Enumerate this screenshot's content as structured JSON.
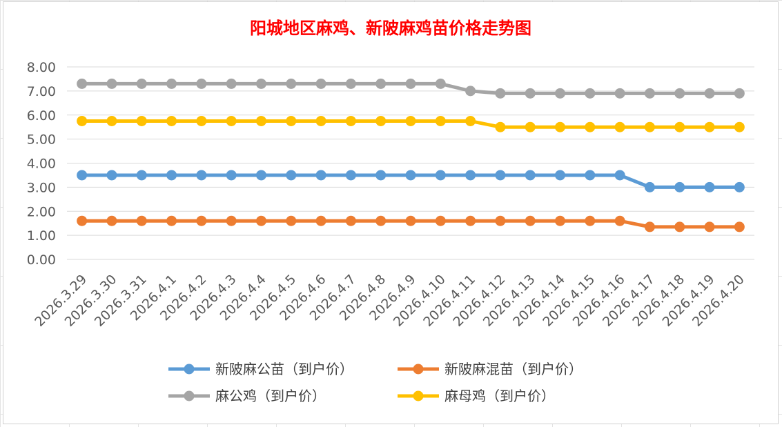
{
  "chart_data": {
    "type": "line",
    "title": "阳城地区麻鸡、新陂麻鸡苗价格走势图",
    "xlabel": "",
    "ylabel": "",
    "ylim": [
      0,
      8
    ],
    "y_ticks": [
      "0.00",
      "1.00",
      "2.00",
      "3.00",
      "4.00",
      "5.00",
      "6.00",
      "7.00",
      "8.00"
    ],
    "grid": true,
    "legend_position": "bottom",
    "x": [
      "2026.3.29",
      "2026.3.30",
      "2026.3.31",
      "2026.4.1",
      "2026.4.2",
      "2026.4.3",
      "2026.4.4",
      "2026.4.5",
      "2026.4.6",
      "2026.4.7",
      "2026.4.8",
      "2026.4.9",
      "2026.4.10",
      "2026.4.11",
      "2026.4.12",
      "2026.4.13",
      "2026.4.14",
      "2026.4.15",
      "2026.4.16",
      "2026.4.17",
      "2026.4.18",
      "2026.4.19",
      "2026.4.20"
    ],
    "series": [
      {
        "name": "新陂麻公苗（到户价）",
        "color": "#5b9bd5",
        "values": [
          3.5,
          3.5,
          3.5,
          3.5,
          3.5,
          3.5,
          3.5,
          3.5,
          3.5,
          3.5,
          3.5,
          3.5,
          3.5,
          3.5,
          3.5,
          3.5,
          3.5,
          3.5,
          3.5,
          3.0,
          3.0,
          3.0,
          3.0
        ]
      },
      {
        "name": "新陂麻混苗（到户价）",
        "color": "#ed7d31",
        "values": [
          1.6,
          1.6,
          1.6,
          1.6,
          1.6,
          1.6,
          1.6,
          1.6,
          1.6,
          1.6,
          1.6,
          1.6,
          1.6,
          1.6,
          1.6,
          1.6,
          1.6,
          1.6,
          1.6,
          1.35,
          1.35,
          1.35,
          1.35
        ]
      },
      {
        "name": "麻公鸡（到户价）",
        "color": "#a5a5a5",
        "values": [
          7.3,
          7.3,
          7.3,
          7.3,
          7.3,
          7.3,
          7.3,
          7.3,
          7.3,
          7.3,
          7.3,
          7.3,
          7.3,
          7.0,
          6.9,
          6.9,
          6.9,
          6.9,
          6.9,
          6.9,
          6.9,
          6.9,
          6.9
        ]
      },
      {
        "name": "麻母鸡（到户价）",
        "color": "#ffc000",
        "values": [
          5.75,
          5.75,
          5.75,
          5.75,
          5.75,
          5.75,
          5.75,
          5.75,
          5.75,
          5.75,
          5.75,
          5.75,
          5.75,
          5.75,
          5.5,
          5.5,
          5.5,
          5.5,
          5.5,
          5.5,
          5.5,
          5.5,
          5.5
        ]
      }
    ]
  }
}
